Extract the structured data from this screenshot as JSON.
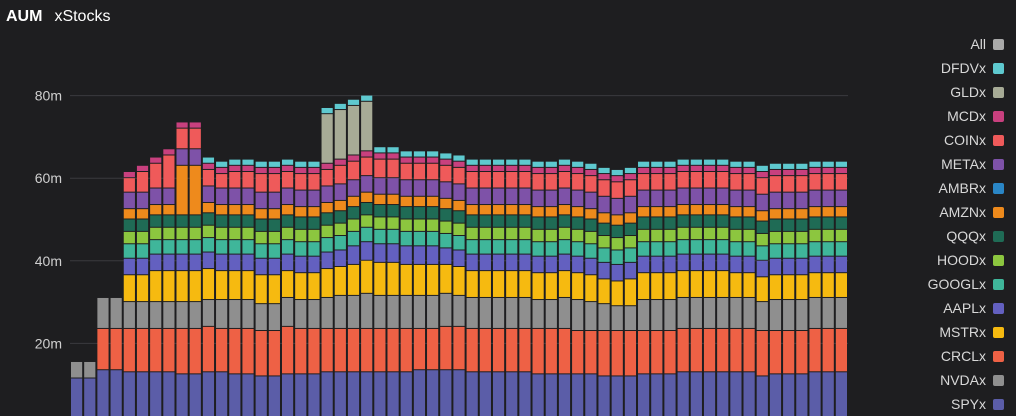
{
  "header": {
    "title": "AUM",
    "subtitle": "xStocks"
  },
  "colors": {
    "background": "#1e1e20",
    "gridline": "#3a3a3e",
    "tick_text": "#cfcfcf"
  },
  "chart_data": {
    "type": "bar",
    "stacked": true,
    "title": "AUM",
    "subtitle": "xStocks",
    "xlabel": "",
    "ylabel": "",
    "ylim": [
      0,
      90000000
    ],
    "yticks": [
      {
        "value": 20000000,
        "label": "20m"
      },
      {
        "value": 40000000,
        "label": "40m"
      },
      {
        "value": 60000000,
        "label": "60m"
      },
      {
        "value": 80000000,
        "label": "80m"
      }
    ],
    "grid": true,
    "legend_position": "right",
    "series": [
      {
        "name": "SPYx",
        "color": "#5b5da8",
        "values": [
          11.5,
          11.5,
          13.5,
          13.5,
          13.0,
          13.0,
          13.0,
          13.0,
          12.5,
          12.5,
          13.0,
          13.0,
          12.5,
          12.5,
          12.0,
          12.0,
          12.5,
          12.5,
          12.5,
          13.0,
          13.0,
          13.0,
          13.0,
          13.0,
          13.0,
          13.0,
          13.5,
          13.5,
          13.5,
          13.5,
          13.0,
          13.0,
          13.0,
          13.0,
          13.0,
          12.5,
          12.5,
          12.5,
          12.5,
          12.5,
          12.0,
          12.0,
          12.0,
          12.5,
          12.5,
          12.5,
          13.0,
          13.0,
          13.0,
          13.0,
          13.0,
          13.0,
          12.0,
          12.5,
          12.5,
          12.5,
          13.0,
          13.0,
          13.0
        ]
      },
      {
        "name": "NVDAx",
        "color": "#8f8f8f",
        "values": [
          4.0,
          4.0,
          0,
          0,
          0,
          0,
          0,
          0,
          0,
          0,
          0,
          0,
          0,
          0,
          0,
          0,
          0,
          0,
          0,
          0,
          0,
          0,
          0,
          0,
          0,
          0,
          0,
          0,
          0,
          0,
          0,
          0,
          0,
          0,
          0,
          0,
          0,
          0,
          0,
          0,
          0,
          0,
          0,
          0,
          0,
          0,
          0,
          0,
          0,
          0,
          0,
          0,
          0,
          0,
          0,
          0,
          0,
          0,
          0
        ]
      },
      {
        "name": "CRCLx",
        "color": "#ee6145",
        "values": [
          0,
          0,
          10.0,
          10.0,
          10.5,
          10.5,
          10.5,
          10.5,
          11.0,
          11.0,
          11.0,
          10.5,
          11.0,
          11.0,
          11.0,
          11.0,
          11.5,
          11.0,
          11.0,
          10.5,
          10.5,
          10.5,
          10.5,
          10.5,
          10.5,
          10.5,
          10.0,
          10.0,
          10.5,
          10.5,
          10.5,
          10.5,
          10.5,
          10.5,
          10.5,
          11.0,
          11.0,
          11.0,
          10.5,
          10.5,
          11.0,
          11.0,
          11.0,
          10.5,
          10.5,
          10.5,
          10.5,
          10.5,
          10.5,
          10.5,
          10.5,
          10.5,
          11.0,
          10.5,
          10.5,
          10.5,
          10.5,
          10.5,
          10.5
        ]
      },
      {
        "name": "NVDAx (2)",
        "color": "#8f8f8f",
        "values": [
          0,
          0,
          7.5,
          7.5,
          6.5,
          6.5,
          6.5,
          6.5,
          6.5,
          6.5,
          6.5,
          7.0,
          7.0,
          7.0,
          6.5,
          6.5,
          7.0,
          7.0,
          7.0,
          7.5,
          8.0,
          8.0,
          8.5,
          8.0,
          8.0,
          8.0,
          8.0,
          8.0,
          8.0,
          7.5,
          7.5,
          7.5,
          7.5,
          7.5,
          7.5,
          7.0,
          7.0,
          7.5,
          7.5,
          7.0,
          6.5,
          6.0,
          6.0,
          7.5,
          7.5,
          7.5,
          7.5,
          7.5,
          7.5,
          7.5,
          7.5,
          7.5,
          7.0,
          7.5,
          7.5,
          7.5,
          7.5,
          7.5,
          7.5
        ]
      },
      {
        "name": "MSTRx",
        "color": "#f6ba10",
        "values": [
          0,
          0,
          0,
          0,
          6.5,
          6.5,
          7.5,
          7.5,
          7.5,
          7.5,
          7.5,
          7.0,
          7.0,
          7.0,
          7.0,
          7.0,
          6.5,
          6.5,
          6.5,
          7.0,
          7.0,
          7.5,
          8.0,
          8.0,
          8.0,
          7.5,
          7.5,
          7.5,
          7.0,
          7.0,
          6.5,
          6.5,
          6.5,
          6.5,
          6.5,
          6.5,
          6.5,
          6.5,
          6.5,
          6.5,
          6.0,
          6.0,
          6.5,
          6.5,
          6.5,
          6.5,
          6.5,
          6.5,
          6.5,
          6.5,
          6.0,
          6.0,
          6.0,
          6.0,
          6.0,
          6.0,
          6.0,
          6.0,
          6.0
        ]
      },
      {
        "name": "AAPLx",
        "color": "#6360c0",
        "values": [
          0,
          0,
          0,
          0,
          4.0,
          4.0,
          4.0,
          4.0,
          4.0,
          4.0,
          4.0,
          4.0,
          4.0,
          4.0,
          4.0,
          4.0,
          4.0,
          4.0,
          4.0,
          4.0,
          4.0,
          4.5,
          4.5,
          4.5,
          4.5,
          4.5,
          4.5,
          4.5,
          4.0,
          4.0,
          4.0,
          4.0,
          4.0,
          4.0,
          4.0,
          4.0,
          4.0,
          4.0,
          4.0,
          4.0,
          4.0,
          4.0,
          4.0,
          4.0,
          4.0,
          4.0,
          4.0,
          4.0,
          4.0,
          4.0,
          4.0,
          4.0,
          4.0,
          4.0,
          4.0,
          4.0,
          4.0,
          4.0,
          4.0
        ]
      },
      {
        "name": "GOOGLx",
        "color": "#3fb69a",
        "values": [
          0,
          0,
          0,
          0,
          3.5,
          3.5,
          3.5,
          3.5,
          3.5,
          3.5,
          3.5,
          3.5,
          3.5,
          3.5,
          3.5,
          3.5,
          3.5,
          3.5,
          3.5,
          3.5,
          3.5,
          3.5,
          3.5,
          3.5,
          3.5,
          3.5,
          3.5,
          3.5,
          3.5,
          3.5,
          3.5,
          3.5,
          3.5,
          3.5,
          3.5,
          3.5,
          3.5,
          3.5,
          3.5,
          3.5,
          3.5,
          3.5,
          3.5,
          3.5,
          3.5,
          3.5,
          3.5,
          3.5,
          3.5,
          3.5,
          3.5,
          3.5,
          3.5,
          3.5,
          3.5,
          3.5,
          3.5,
          3.5,
          3.5
        ]
      },
      {
        "name": "HOODx",
        "color": "#8cc63f",
        "values": [
          0,
          0,
          0,
          0,
          3.0,
          3.0,
          3.0,
          3.0,
          3.0,
          3.0,
          3.0,
          3.0,
          3.0,
          3.0,
          3.0,
          3.0,
          3.0,
          3.0,
          3.0,
          3.0,
          3.0,
          3.0,
          3.0,
          3.0,
          3.0,
          3.0,
          3.0,
          3.0,
          3.0,
          3.0,
          3.0,
          3.0,
          3.0,
          3.0,
          3.0,
          3.0,
          3.0,
          3.0,
          3.0,
          3.0,
          3.0,
          3.0,
          3.0,
          3.0,
          3.0,
          3.0,
          3.0,
          3.0,
          3.0,
          3.0,
          3.0,
          3.0,
          3.0,
          3.0,
          3.0,
          3.0,
          3.0,
          3.0,
          3.0
        ]
      },
      {
        "name": "QQQx",
        "color": "#1f6b55",
        "values": [
          0,
          0,
          0,
          0,
          3.0,
          3.0,
          3.0,
          3.0,
          3.0,
          3.0,
          3.0,
          3.0,
          3.0,
          3.0,
          3.0,
          3.0,
          3.0,
          3.0,
          3.0,
          3.0,
          3.0,
          3.0,
          3.0,
          3.0,
          3.0,
          3.0,
          3.0,
          3.0,
          3.0,
          3.0,
          3.0,
          3.0,
          3.0,
          3.0,
          3.0,
          3.0,
          3.0,
          3.0,
          3.0,
          3.0,
          3.0,
          3.0,
          3.0,
          3.0,
          3.0,
          3.0,
          3.0,
          3.0,
          3.0,
          3.0,
          3.0,
          3.0,
          3.0,
          3.0,
          3.0,
          3.0,
          3.0,
          3.0,
          3.0
        ]
      },
      {
        "name": "AMZNx",
        "color": "#ee8a1c",
        "values": [
          0,
          0,
          0,
          0,
          0,
          0,
          0,
          0,
          12.0,
          12.0,
          0,
          0,
          0,
          0,
          0,
          0,
          0,
          0,
          0,
          0,
          0,
          0,
          0,
          0,
          0,
          0,
          0,
          0,
          0,
          0,
          0,
          0,
          0,
          0,
          0,
          0,
          0,
          0,
          0,
          0,
          0,
          0,
          0,
          0,
          0,
          0,
          0,
          0,
          0,
          0,
          0,
          0,
          0,
          0,
          0,
          0,
          0,
          0,
          0
        ]
      },
      {
        "name": "AMZNx (2)",
        "color": "#ee8a1c",
        "values": [
          0,
          0,
          0,
          0,
          2.5,
          2.5,
          2.5,
          2.5,
          0,
          0,
          2.5,
          2.5,
          2.5,
          2.5,
          2.5,
          2.5,
          2.5,
          2.5,
          2.5,
          2.5,
          2.5,
          2.5,
          2.5,
          2.5,
          2.5,
          2.5,
          2.5,
          2.5,
          2.5,
          2.5,
          2.5,
          2.5,
          2.5,
          2.5,
          2.5,
          2.5,
          2.5,
          2.5,
          2.5,
          2.5,
          2.5,
          2.5,
          2.5,
          2.5,
          2.5,
          2.5,
          2.5,
          2.5,
          2.5,
          2.5,
          2.5,
          2.5,
          2.5,
          2.5,
          2.5,
          2.5,
          2.5,
          2.5,
          2.5
        ]
      },
      {
        "name": "AMBRx",
        "color": "#2a86c6",
        "values": [
          0,
          0,
          0,
          0,
          0,
          0,
          0,
          0,
          0,
          0,
          0,
          0,
          0,
          0,
          0,
          0,
          0,
          0,
          0,
          0,
          0,
          0,
          0,
          0,
          0,
          0,
          0,
          0,
          0,
          0,
          0,
          0,
          0,
          0,
          0,
          0,
          0,
          0,
          0,
          0,
          0,
          0,
          0,
          0,
          0,
          0,
          0,
          0,
          0,
          0,
          0,
          0,
          0,
          0,
          0,
          0,
          0,
          0,
          0
        ]
      },
      {
        "name": "METAx",
        "color": "#7e52a8",
        "values": [
          0,
          0,
          0,
          0,
          4.0,
          4.0,
          4.0,
          4.0,
          4.0,
          4.0,
          4.0,
          4.0,
          4.0,
          4.0,
          4.0,
          4.0,
          4.0,
          4.0,
          4.0,
          4.0,
          4.0,
          4.0,
          4.0,
          4.0,
          4.0,
          4.0,
          4.0,
          4.0,
          4.0,
          4.0,
          4.0,
          4.0,
          4.0,
          4.0,
          4.0,
          4.0,
          4.0,
          4.0,
          4.0,
          4.0,
          4.0,
          4.0,
          4.0,
          4.0,
          4.0,
          4.0,
          4.0,
          4.0,
          4.0,
          4.0,
          4.0,
          4.0,
          4.0,
          4.0,
          4.0,
          4.0,
          4.0,
          4.0,
          4.0
        ]
      },
      {
        "name": "COINx",
        "color": "#ef5a5a",
        "values": [
          0,
          0,
          0,
          0,
          3.5,
          5.0,
          6.0,
          8.0,
          5.0,
          5.0,
          4.0,
          3.5,
          4.0,
          4.0,
          4.5,
          4.5,
          4.0,
          4.0,
          4.0,
          4.0,
          4.5,
          4.5,
          4.5,
          4.5,
          4.5,
          4.0,
          4.0,
          4.0,
          4.0,
          4.0,
          4.0,
          4.0,
          4.0,
          4.0,
          4.0,
          4.0,
          4.0,
          4.0,
          4.0,
          4.0,
          4.0,
          4.0,
          4.0,
          4.0,
          4.0,
          4.0,
          4.0,
          4.0,
          4.0,
          4.0,
          4.0,
          4.0,
          4.0,
          4.0,
          4.0,
          4.0,
          4.0,
          4.0,
          4.0
        ]
      },
      {
        "name": "MCDx",
        "color": "#c8407e",
        "values": [
          0,
          0,
          0,
          0,
          1.5,
          1.5,
          1.5,
          1.5,
          1.5,
          1.5,
          1.5,
          1.5,
          1.5,
          1.5,
          1.5,
          1.5,
          1.5,
          1.5,
          1.5,
          1.5,
          1.5,
          1.5,
          1.5,
          1.5,
          1.5,
          1.5,
          1.5,
          1.5,
          1.5,
          1.5,
          1.5,
          1.5,
          1.5,
          1.5,
          1.5,
          1.5,
          1.5,
          1.5,
          1.5,
          1.5,
          1.5,
          1.5,
          1.5,
          1.5,
          1.5,
          1.5,
          1.5,
          1.5,
          1.5,
          1.5,
          1.5,
          1.5,
          1.5,
          1.5,
          1.5,
          1.5,
          1.5,
          1.5,
          1.5
        ]
      },
      {
        "name": "GLDx",
        "color": "#a7ab96",
        "values": [
          0,
          0,
          0,
          0,
          0,
          0,
          0,
          0,
          0,
          0,
          0,
          0,
          0,
          0,
          0,
          0,
          0,
          0,
          0,
          12.0,
          12.0,
          12.0,
          12.0,
          0,
          0,
          0,
          0,
          0,
          0,
          0,
          0,
          0,
          0,
          0,
          0,
          0,
          0,
          0,
          0,
          0,
          0,
          0,
          0,
          0,
          0,
          0,
          0,
          0,
          0,
          0,
          0,
          0,
          0,
          0,
          0,
          0,
          0,
          0,
          0
        ]
      },
      {
        "name": "DFDVx",
        "color": "#5ec9cf",
        "values": [
          0,
          0,
          0,
          0,
          0,
          0,
          0,
          0,
          0,
          0,
          1.5,
          1.5,
          1.5,
          1.5,
          1.5,
          1.5,
          1.5,
          1.5,
          1.5,
          1.5,
          1.5,
          1.5,
          1.5,
          1.5,
          1.5,
          1.5,
          1.5,
          1.5,
          1.5,
          1.5,
          1.5,
          1.5,
          1.5,
          1.5,
          1.5,
          1.5,
          1.5,
          1.5,
          1.5,
          1.5,
          1.5,
          1.5,
          1.5,
          1.5,
          1.5,
          1.5,
          1.5,
          1.5,
          1.5,
          1.5,
          1.5,
          1.5,
          1.5,
          1.5,
          1.5,
          1.5,
          1.5,
          1.5,
          1.5
        ]
      }
    ],
    "legend": [
      {
        "name": "All",
        "color": "#a9a9a9"
      },
      {
        "name": "DFDVx",
        "color": "#5ec9cf"
      },
      {
        "name": "GLDx",
        "color": "#a7ab96"
      },
      {
        "name": "MCDx",
        "color": "#c8407e"
      },
      {
        "name": "COINx",
        "color": "#ef5a5a"
      },
      {
        "name": "METAx",
        "color": "#7e52a8"
      },
      {
        "name": "AMBRx",
        "color": "#2a86c6"
      },
      {
        "name": "AMZNx",
        "color": "#ee8a1c"
      },
      {
        "name": "QQQx",
        "color": "#1f6b55"
      },
      {
        "name": "HOODx",
        "color": "#8cc63f"
      },
      {
        "name": "GOOGLx",
        "color": "#3fb69a"
      },
      {
        "name": "AAPLx",
        "color": "#6360c0"
      },
      {
        "name": "MSTRx",
        "color": "#f6ba10"
      },
      {
        "name": "CRCLx",
        "color": "#ee6145"
      },
      {
        "name": "NVDAx",
        "color": "#8f8f8f"
      },
      {
        "name": "SPYx",
        "color": "#5b5da8"
      }
    ]
  }
}
